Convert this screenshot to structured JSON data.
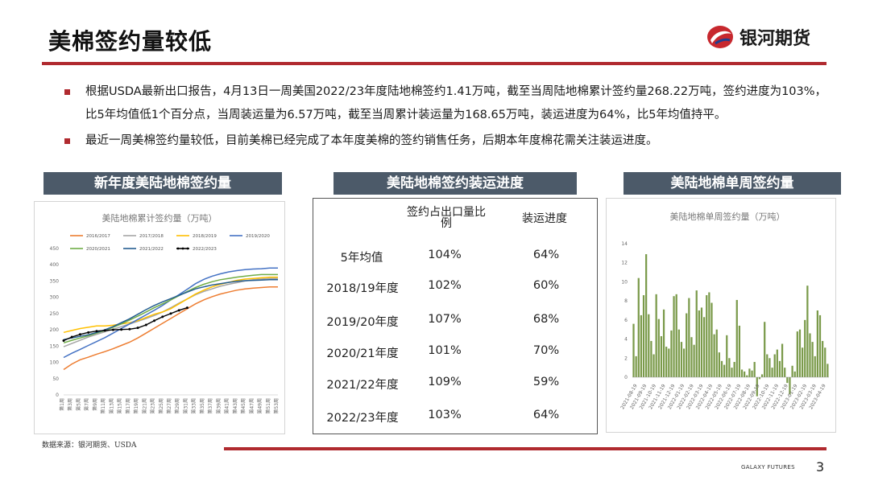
{
  "header": {
    "title": "美棉签约量较低",
    "brand": "银河期货"
  },
  "bullets": [
    "根据USDA最新出口报告，4月13日一周美国2022/23年度陆地棉签约1.41万吨，截至当周陆地棉累计签约量268.22万吨，签约进度为103%，比5年均值低1个百分点，当周装运量为6.57万吨，截至当周累计装运量为168.65万吨，装运进度为64%，比5年均值持平。",
    "最近一周美棉签约量较低，目前美棉已经完成了本年度美棉的签约销售任务，后期本年度棉花需关注装运进度。"
  ],
  "panels": {
    "left": {
      "header": "新年度美陆地棉签约量"
    },
    "middle": {
      "header": "美陆地棉签约装运进度"
    },
    "right": {
      "header": "美陆地棉单周签约量"
    }
  },
  "colors": {
    "accent": "#b02a2f",
    "panel_header": "#4c5a69",
    "bar": "#7a9a4a"
  },
  "chart_data": [
    {
      "type": "line",
      "title": "美陆地棉累计签约量（万吨）",
      "ylim": [
        0,
        450
      ],
      "yticks": [
        0,
        50,
        100,
        150,
        200,
        250,
        300,
        350,
        400,
        450
      ],
      "x": [
        "第1周",
        "第3周",
        "第5周",
        "第7周",
        "第9周",
        "第11周",
        "第13周",
        "第15周",
        "第17周",
        "第19周",
        "第21周",
        "第23周",
        "第25周",
        "第27周",
        "第29周",
        "第31周",
        "第33周",
        "第35周",
        "第37周",
        "第39周",
        "第41周",
        "第43周",
        "第45周",
        "第47周",
        "第49周",
        "第51周",
        "第53周"
      ],
      "series": [
        {
          "name": "2016/2017",
          "color": "#ed7d31",
          "values": [
            78,
            95,
            108,
            116,
            125,
            133,
            142,
            152,
            162,
            175,
            190,
            205,
            220,
            235,
            250,
            265,
            280,
            292,
            302,
            310,
            316,
            322,
            326,
            328,
            330,
            332,
            332
          ]
        },
        {
          "name": "2017/2018",
          "color": "#a5a5a5",
          "values": [
            148,
            158,
            168,
            178,
            186,
            194,
            202,
            210,
            218,
            226,
            235,
            244,
            255,
            268,
            282,
            295,
            308,
            318,
            326,
            334,
            340,
            345,
            350,
            354,
            356,
            358,
            358
          ]
        },
        {
          "name": "2018/2019",
          "color": "#ffc000",
          "values": [
            192,
            198,
            204,
            208,
            212,
            212,
            214,
            218,
            222,
            228,
            238,
            248,
            255,
            265,
            280,
            295,
            310,
            322,
            332,
            340,
            346,
            352,
            356,
            358,
            360,
            362,
            362
          ]
        },
        {
          "name": "2019/2020",
          "color": "#4472c4",
          "values": [
            115,
            128,
            140,
            152,
            164,
            176,
            190,
            204,
            218,
            232,
            246,
            260,
            275,
            292,
            308,
            325,
            342,
            355,
            365,
            372,
            378,
            382,
            385,
            387,
            388,
            390,
            390
          ]
        },
        {
          "name": "2020/2021",
          "color": "#70ad47",
          "values": [
            160,
            168,
            175,
            182,
            190,
            198,
            208,
            218,
            230,
            242,
            255,
            268,
            280,
            292,
            305,
            318,
            330,
            340,
            348,
            354,
            358,
            362,
            365,
            368,
            370,
            370,
            370
          ]
        },
        {
          "name": "2021/2022",
          "color": "#255e91",
          "values": [
            170,
            175,
            180,
            185,
            192,
            200,
            210,
            222,
            234,
            248,
            262,
            275,
            286,
            296,
            306,
            316,
            326,
            332,
            338,
            342,
            346,
            349,
            351,
            352,
            353,
            354,
            354
          ]
        },
        {
          "name": "2022/2023",
          "color": "#000000",
          "values": [
            167,
            178,
            186,
            192,
            196,
            198,
            200,
            201,
            202,
            206,
            215,
            228,
            240,
            250,
            260,
            268,
            null,
            null,
            null,
            null,
            null,
            null,
            null,
            null,
            null,
            null,
            null
          ]
        }
      ]
    },
    {
      "type": "table",
      "columns": [
        "",
        "签约占出口量比例",
        "装运进度"
      ],
      "rows": [
        [
          "5年均值",
          "104%",
          "64%"
        ],
        [
          "2018/19年度",
          "102%",
          "60%"
        ],
        [
          "2019/20年度",
          "107%",
          "68%"
        ],
        [
          "2020/21年度",
          "101%",
          "70%"
        ],
        [
          "2021/22年度",
          "109%",
          "59%"
        ],
        [
          "2022/23年度",
          "103%",
          "64%"
        ]
      ]
    },
    {
      "type": "bar",
      "title": "美陆地棉单周签约量（万吨）",
      "ylim": [
        -2,
        14
      ],
      "yticks": [
        0,
        2,
        4,
        6,
        8,
        10,
        12,
        14
      ],
      "xlabels": [
        "2021-08-19",
        "2021-09-19",
        "2021-10-19",
        "2021-11-19",
        "2021-12-19",
        "2022-01-19",
        "2022-02-19",
        "2022-03-19",
        "2022-04-19",
        "2022-05-19",
        "2022-06-19",
        "2022-07-19",
        "2022-08-19",
        "2022-09-19",
        "2022-10-19",
        "2022-11-19",
        "2022-12-19",
        "2023-01-19",
        "2023-02-19",
        "2023-03-19",
        "2023-04-19"
      ],
      "values": [
        5.6,
        2.2,
        10.4,
        6.5,
        8.6,
        12.9,
        6.6,
        3.8,
        2.4,
        8.7,
        6.1,
        4.3,
        7.1,
        3.2,
        3.0,
        4.9,
        8.5,
        8.7,
        5.0,
        3.7,
        3.0,
        6.7,
        8.3,
        4.2,
        3.4,
        9.1,
        7.0,
        7.3,
        6.3,
        8.6,
        8.9,
        7.8,
        4.5,
        5.0,
        2.6,
        1.7,
        1.3,
        4.4,
        2.0,
        1.0,
        1.6,
        8.1,
        5.4,
        0.8,
        0.6,
        0.2,
        0.9,
        0.7,
        1.6,
        -2.0,
        -0.2,
        0.3,
        5.8,
        2.4,
        2.0,
        1.0,
        2.4,
        2.9,
        1.7,
        3.5,
        1.0,
        -0.6,
        -1.8,
        1.2,
        0.6,
        4.8,
        5.0,
        3.1,
        6.0,
        9.6,
        4.6,
        3.7,
        2.2,
        7.0,
        6.5,
        3.8,
        3.1,
        1.4
      ]
    }
  ],
  "footer": {
    "source": "数据来源：银河期货、USDA",
    "brand_en": "GALAXY FUTURES",
    "page": "3"
  }
}
